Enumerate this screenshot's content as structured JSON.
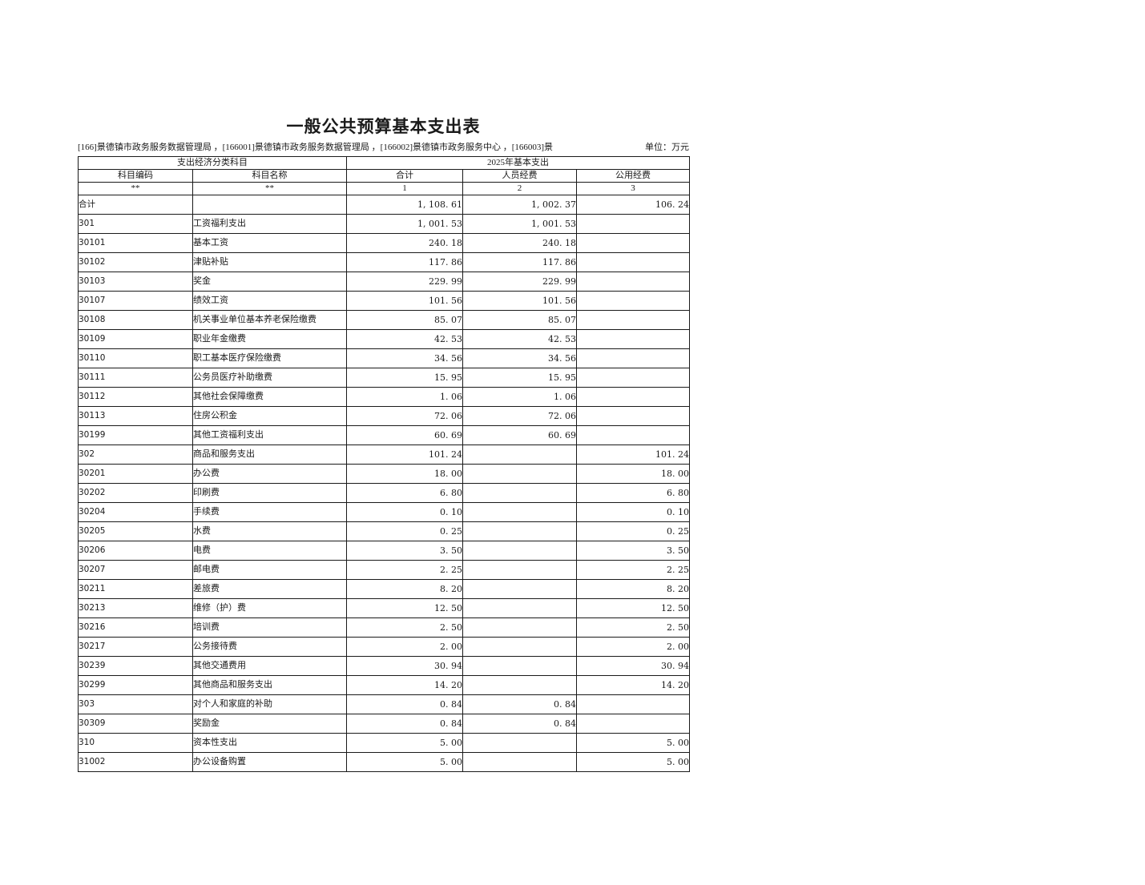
{
  "page": {
    "title": "一般公共预算基本支出表",
    "org_line": "[166]景德镇市政务服务数据管理局 ，[166001]景德镇市政务服务数据管理局 ，[166002]景德镇市政务服务中心 ，[166003]景",
    "unit_label": "单位：万元"
  },
  "table": {
    "header": {
      "group_subject": "支出经济分类科目",
      "group_budget": "2025年基本支出",
      "col_code": "科目编码",
      "col_name": "科目名称",
      "col_total": "合计",
      "col_personnel": "人员经费",
      "col_public": "公用经费",
      "sub_code": "**",
      "sub_name": "**",
      "sub_total": "1",
      "sub_personnel": "2",
      "sub_public": "3"
    },
    "rows": [
      {
        "code": "合计",
        "name": "",
        "total": "1, 108. 61",
        "personnel": "1, 002. 37",
        "public": "106. 24",
        "level": 0
      },
      {
        "code": "301",
        "name": "工资福利支出",
        "total": "1, 001. 53",
        "personnel": "1, 001. 53",
        "public": "",
        "level": 0
      },
      {
        "code": "30101",
        "name": "基本工资",
        "total": "240. 18",
        "personnel": "240. 18",
        "public": "",
        "level": 1
      },
      {
        "code": "30102",
        "name": "津贴补贴",
        "total": "117. 86",
        "personnel": "117. 86",
        "public": "",
        "level": 1
      },
      {
        "code": "30103",
        "name": "奖金",
        "total": "229. 99",
        "personnel": "229. 99",
        "public": "",
        "level": 1
      },
      {
        "code": "30107",
        "name": "绩效工资",
        "total": "101. 56",
        "personnel": "101. 56",
        "public": "",
        "level": 1
      },
      {
        "code": "30108",
        "name": "机关事业单位基本养老保险缴费",
        "total": "85. 07",
        "personnel": "85. 07",
        "public": "",
        "level": 1
      },
      {
        "code": "30109",
        "name": "职业年金缴费",
        "total": "42. 53",
        "personnel": "42. 53",
        "public": "",
        "level": 1
      },
      {
        "code": "30110",
        "name": "职工基本医疗保险缴费",
        "total": "34. 56",
        "personnel": "34. 56",
        "public": "",
        "level": 1
      },
      {
        "code": "30111",
        "name": "公务员医疗补助缴费",
        "total": "15. 95",
        "personnel": "15. 95",
        "public": "",
        "level": 1
      },
      {
        "code": "30112",
        "name": "其他社会保障缴费",
        "total": "1. 06",
        "personnel": "1. 06",
        "public": "",
        "level": 1
      },
      {
        "code": "30113",
        "name": "住房公积金",
        "total": "72. 06",
        "personnel": "72. 06",
        "public": "",
        "level": 1
      },
      {
        "code": "30199",
        "name": "其他工资福利支出",
        "total": "60. 69",
        "personnel": "60. 69",
        "public": "",
        "level": 1
      },
      {
        "code": "302",
        "name": "商品和服务支出",
        "total": "101. 24",
        "personnel": "",
        "public": "101. 24",
        "level": 0
      },
      {
        "code": "30201",
        "name": "办公费",
        "total": "18. 00",
        "personnel": "",
        "public": "18. 00",
        "level": 1
      },
      {
        "code": "30202",
        "name": "印刷费",
        "total": "6. 80",
        "personnel": "",
        "public": "6. 80",
        "level": 1
      },
      {
        "code": "30204",
        "name": "手续费",
        "total": "0. 10",
        "personnel": "",
        "public": "0. 10",
        "level": 1
      },
      {
        "code": "30205",
        "name": "水费",
        "total": "0. 25",
        "personnel": "",
        "public": "0. 25",
        "level": 1
      },
      {
        "code": "30206",
        "name": "电费",
        "total": "3. 50",
        "personnel": "",
        "public": "3. 50",
        "level": 1
      },
      {
        "code": "30207",
        "name": "邮电费",
        "total": "2. 25",
        "personnel": "",
        "public": "2. 25",
        "level": 1
      },
      {
        "code": "30211",
        "name": "差旅费",
        "total": "8. 20",
        "personnel": "",
        "public": "8. 20",
        "level": 1
      },
      {
        "code": "30213",
        "name": "维修（护）费",
        "total": "12. 50",
        "personnel": "",
        "public": "12. 50",
        "level": 1
      },
      {
        "code": "30216",
        "name": "培训费",
        "total": "2. 50",
        "personnel": "",
        "public": "2. 50",
        "level": 1
      },
      {
        "code": "30217",
        "name": "公务接待费",
        "total": "2. 00",
        "personnel": "",
        "public": "2. 00",
        "level": 1
      },
      {
        "code": "30239",
        "name": "其他交通费用",
        "total": "30. 94",
        "personnel": "",
        "public": "30. 94",
        "level": 1
      },
      {
        "code": "30299",
        "name": "其他商品和服务支出",
        "total": "14. 20",
        "personnel": "",
        "public": "14. 20",
        "level": 1
      },
      {
        "code": "303",
        "name": "对个人和家庭的补助",
        "total": "0. 84",
        "personnel": "0. 84",
        "public": "",
        "level": 0
      },
      {
        "code": "30309",
        "name": "奖励金",
        "total": "0. 84",
        "personnel": "0. 84",
        "public": "",
        "level": 1
      },
      {
        "code": "310",
        "name": "资本性支出",
        "total": "5. 00",
        "personnel": "",
        "public": "5. 00",
        "level": 0
      },
      {
        "code": "31002",
        "name": "办公设备购置",
        "total": "5. 00",
        "personnel": "",
        "public": "5. 00",
        "level": 1
      }
    ]
  },
  "colors": {
    "background": "#ffffff",
    "text": "#1a1a1a",
    "border": "#1a1a1a"
  }
}
